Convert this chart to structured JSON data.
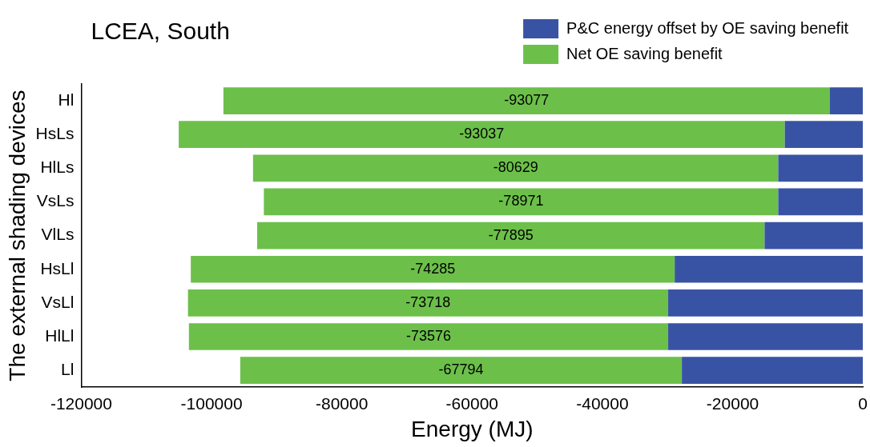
{
  "chart_data": {
    "type": "bar",
    "orientation": "horizontal",
    "stacked": true,
    "title": "LCEA, South",
    "xlabel": "Energy (MJ)",
    "ylabel": "The external shading devices",
    "categories": [
      "Hl",
      "HsLs",
      "HlLs",
      "VsLs",
      "VlLs",
      "HsLl",
      "VsLl",
      "HlLl",
      "Ll"
    ],
    "series": [
      {
        "name": "P&C energy offset by OE saving benefit",
        "color": "#3953a4",
        "values": [
          -5100,
          -12000,
          -13000,
          -13000,
          -15100,
          -28900,
          -29900,
          -29900,
          -27800
        ]
      },
      {
        "name": "Net OE saving benefit",
        "color": "#6cc04a",
        "values": [
          -93077,
          -93037,
          -80629,
          -78971,
          -77895,
          -74285,
          -73718,
          -73576,
          -67794
        ],
        "value_labels": [
          "-93077",
          "-93037",
          "-80629",
          "-78971",
          "-77895",
          "-74285",
          "-73718",
          "-73576",
          "-67794"
        ]
      }
    ],
    "xlim": [
      -120000,
      0
    ],
    "xticks": [
      -120000,
      -100000,
      -80000,
      -60000,
      -40000,
      -20000,
      0
    ],
    "grid": false,
    "legend": "top right"
  }
}
